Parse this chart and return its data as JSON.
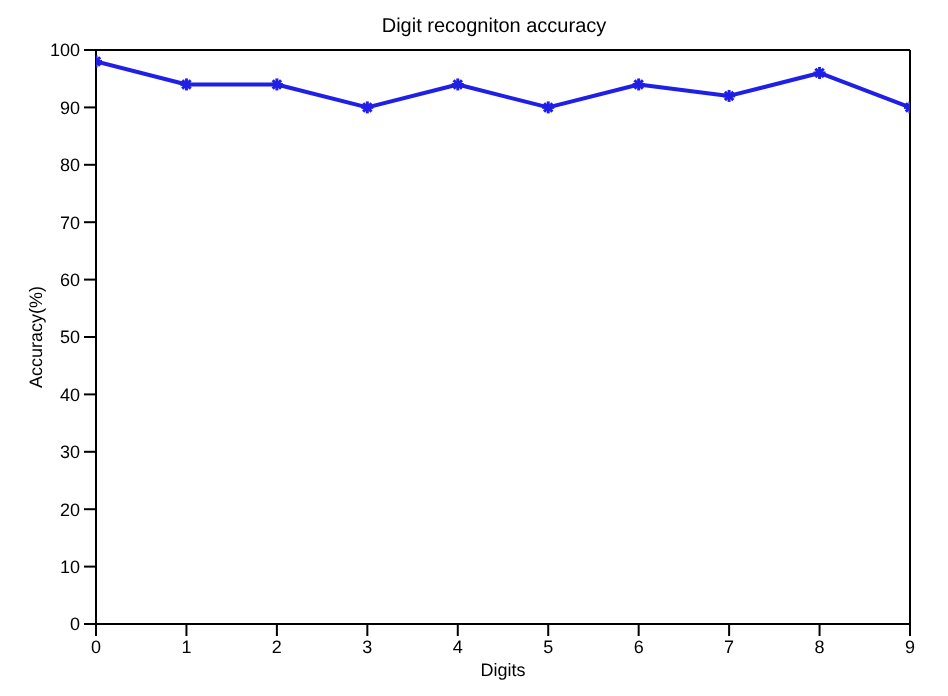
{
  "chart_data": {
    "type": "line",
    "title": "Digit recogniton accuracy",
    "xlabel": "Digits",
    "ylabel": "Accuracy(%)",
    "x": [
      0,
      1,
      2,
      3,
      4,
      5,
      6,
      7,
      8,
      9
    ],
    "series": [
      {
        "color": "#1f1fe6",
        "values": [
          98,
          94,
          94,
          90,
          94,
          90,
          94,
          92,
          96,
          90
        ]
      }
    ],
    "xlim": [
      0,
      9
    ],
    "xticks": [
      0,
      1,
      2,
      3,
      4,
      5,
      6,
      7,
      8,
      9
    ],
    "ylim": [
      0,
      100
    ],
    "yticks": [
      0,
      10,
      20,
      30,
      40,
      50,
      60,
      70,
      80,
      90,
      100
    ],
    "marker": "cross",
    "line_style": "solid"
  }
}
